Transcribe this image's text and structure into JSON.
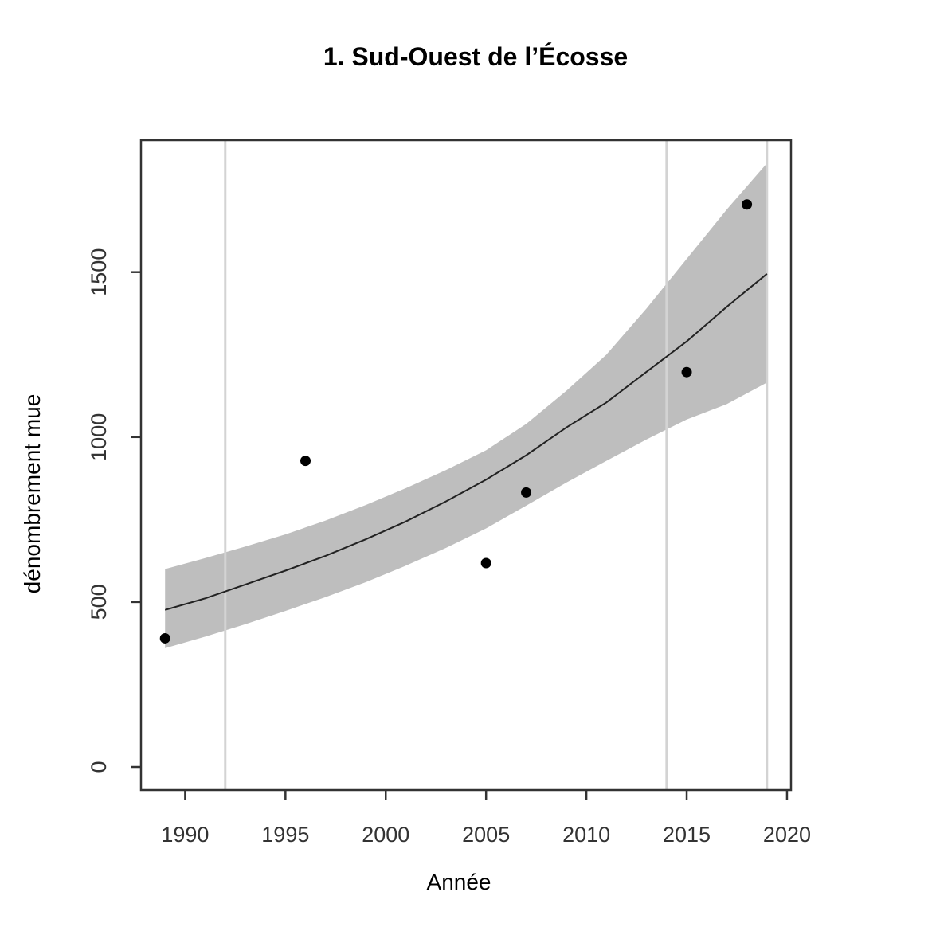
{
  "chart_data": {
    "type": "scatter",
    "title": "1. Sud-Ouest de l’Écosse",
    "xlabel": "Année",
    "ylabel": "dénombrement mue",
    "xlim": [
      1987.8,
      2020.2
    ],
    "ylim": [
      -70,
      1900
    ],
    "x_ticks": [
      1990,
      1995,
      2000,
      2005,
      2010,
      2015,
      2020
    ],
    "y_ticks": [
      0,
      500,
      1000,
      1500
    ],
    "grid": false,
    "legend": "none",
    "reference_lines_x": [
      1992,
      2014,
      2019
    ],
    "points": [
      {
        "x": 1989,
        "y": 390
      },
      {
        "x": 1996,
        "y": 928
      },
      {
        "x": 2005,
        "y": 618
      },
      {
        "x": 2007,
        "y": 832
      },
      {
        "x": 2015,
        "y": 1197
      },
      {
        "x": 2018,
        "y": 1705
      }
    ],
    "trend": {
      "x": [
        1989,
        1991,
        1993,
        1995,
        1997,
        1999,
        2001,
        2003,
        2005,
        2007,
        2009,
        2011,
        2013,
        2015,
        2017,
        2019
      ],
      "fit": [
        476,
        511,
        553,
        595,
        640,
        690,
        744,
        805,
        871,
        945,
        1029,
        1105,
        1198,
        1290,
        1395,
        1495
      ],
      "lower": [
        360,
        395,
        433,
        473,
        515,
        560,
        610,
        664,
        723,
        792,
        862,
        928,
        993,
        1053,
        1100,
        1165
      ],
      "upper": [
        600,
        633,
        668,
        705,
        747,
        794,
        845,
        900,
        960,
        1040,
        1140,
        1250,
        1390,
        1540,
        1690,
        1830
      ]
    },
    "colors": {
      "band": "#bebebe",
      "fit_line": "#222222",
      "points": "#000000",
      "reference_line": "#d3d3d3",
      "axis": "#333333",
      "tick_label": "#333333"
    }
  }
}
